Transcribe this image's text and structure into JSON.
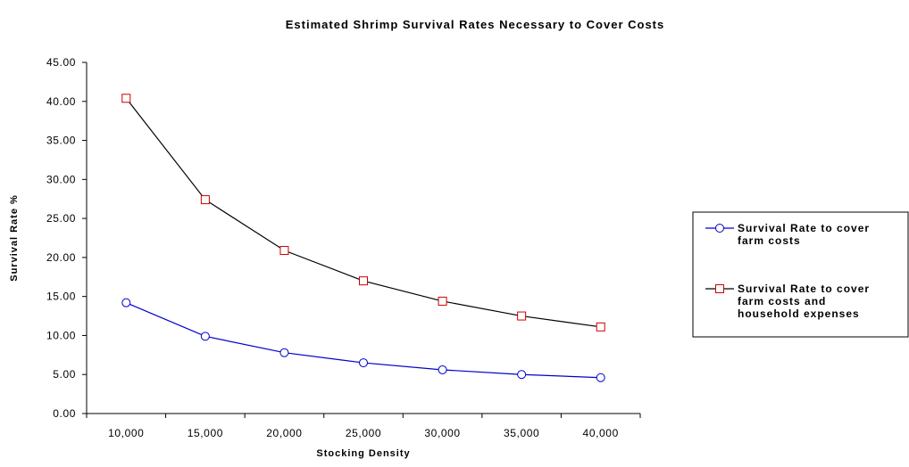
{
  "colors": {
    "background": "#ffffff",
    "axis": "#000000",
    "farm_costs_series": "#0000cc",
    "household_series_line": "#000000",
    "household_series_marker": "#cc0000"
  },
  "chart_data": {
    "type": "line",
    "title": "Estimated Shrimp Survival Rates Necessary to Cover Costs",
    "xlabel": "Stocking Density",
    "ylabel": "Survival Rate %",
    "categories": [
      "10,000",
      "15,000",
      "20,000",
      "25,000",
      "30,000",
      "35,000",
      "40,000"
    ],
    "x": [
      10000,
      15000,
      20000,
      25000,
      30000,
      35000,
      40000
    ],
    "ylim": [
      0,
      45
    ],
    "yticks": [
      0,
      5,
      10,
      15,
      20,
      25,
      30,
      35,
      40,
      45
    ],
    "ytick_labels": [
      "0.00",
      "5.00",
      "10.00",
      "15.00",
      "20.00",
      "25.00",
      "30.00",
      "35.00",
      "40.00",
      "45.00"
    ],
    "grid": false,
    "legend_position": "right",
    "series": [
      {
        "name": "Survival Rate to cover farm costs",
        "legend_lines": [
          "Survival Rate to cover",
          "farm costs"
        ],
        "marker": "circle",
        "values": [
          14.2,
          9.9,
          7.8,
          6.5,
          5.6,
          5.0,
          4.6
        ]
      },
      {
        "name": "Survival Rate to cover farm costs and household expenses",
        "legend_lines": [
          "Survival Rate to cover",
          "farm costs and",
          "household expenses"
        ],
        "marker": "square",
        "values": [
          40.4,
          27.4,
          20.9,
          17.0,
          14.4,
          12.5,
          11.1
        ]
      }
    ]
  }
}
